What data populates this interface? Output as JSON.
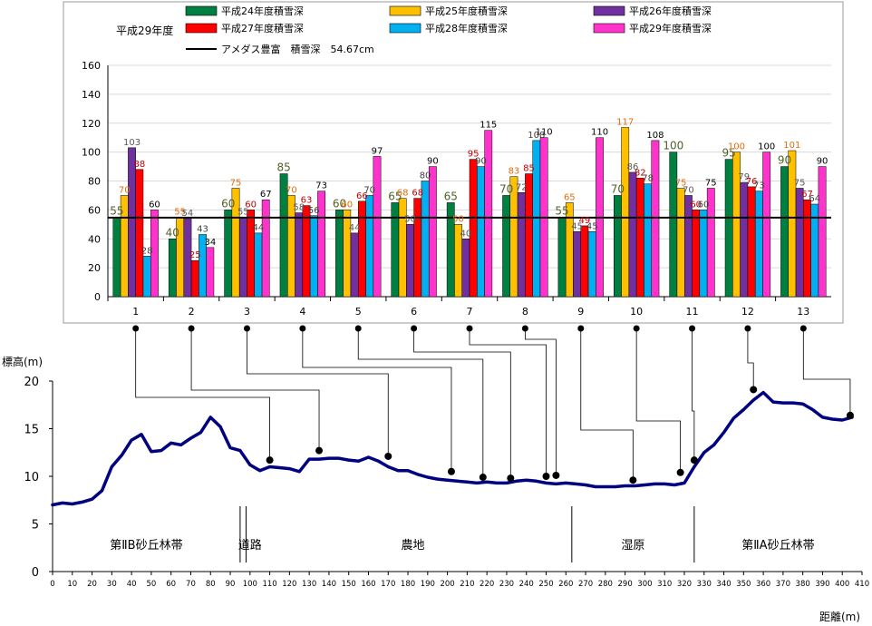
{
  "chart_data": [
    {
      "type": "bar",
      "title": "平成29年度",
      "categories": [
        "1",
        "2",
        "3",
        "4",
        "5",
        "6",
        "7",
        "8",
        "9",
        "10",
        "11",
        "12",
        "13"
      ],
      "ylim": [
        0,
        160
      ],
      "yticks": [
        "0",
        "20",
        "40",
        "60",
        "80",
        "100",
        "120",
        "140",
        "160"
      ],
      "grid": true,
      "legend_position": "top",
      "series": [
        {
          "name": "平成24年度積雪深",
          "color": "#008040",
          "label_color": "#4f6228",
          "values": [
            55,
            40,
            60,
            85,
            60,
            65,
            65,
            70,
            55,
            70,
            100,
            95,
            90
          ]
        },
        {
          "name": "平成25年度積雪深",
          "color": "#ffc000",
          "label_color": "#e46c0a",
          "values": [
            70,
            55,
            75,
            70,
            60,
            68,
            50,
            83,
            65,
            117,
            75,
            100,
            101
          ]
        },
        {
          "name": "平成26年度積雪深",
          "color": "#7030a0",
          "label_color": "#595959",
          "values": [
            103,
            54,
            55,
            58,
            44,
            50,
            40,
            72,
            45,
            86,
            70,
            79,
            75
          ]
        },
        {
          "name": "平成27年度積雪深",
          "color": "#ff0000",
          "label_color": "#c00000",
          "values": [
            88,
            25,
            60,
            63,
            66,
            68,
            95,
            85,
            49,
            82,
            60,
            76,
            67
          ]
        },
        {
          "name": "平成28年度積雪深",
          "color": "#00b0f0",
          "label_color": "#404040",
          "values": [
            28,
            43,
            44,
            56,
            70,
            80,
            90,
            108,
            45,
            78,
            60,
            73,
            64
          ]
        },
        {
          "name": "平成29年度積雪深",
          "color": "#ff33cc",
          "label_color": "#000000",
          "values": [
            60,
            34,
            67,
            73,
            97,
            90,
            115,
            110,
            110,
            108,
            75,
            100,
            90
          ]
        }
      ],
      "reference_line": {
        "name": "アメダス豊富　積雪深　54.67cm",
        "value": 54.67,
        "color": "#000000"
      }
    },
    {
      "type": "line",
      "ylabel": "標高(m)",
      "xlabel": "距離(m)",
      "xlim": [
        0,
        410
      ],
      "ylim": [
        0,
        20
      ],
      "xticks": [
        "0",
        "10",
        "20",
        "30",
        "40",
        "50",
        "60",
        "70",
        "80",
        "90",
        "100",
        "110",
        "120",
        "130",
        "140",
        "150",
        "160",
        "170",
        "180",
        "190",
        "200",
        "210",
        "220",
        "230",
        "240",
        "250",
        "260",
        "270",
        "280",
        "290",
        "300",
        "310",
        "320",
        "330",
        "340",
        "350",
        "360",
        "370",
        "380",
        "390",
        "400",
        "410"
      ],
      "yticks": [
        "0",
        "5",
        "10",
        "15",
        "20"
      ],
      "color": "#000080",
      "profile": {
        "x": [
          0,
          5,
          10,
          15,
          20,
          25,
          30,
          35,
          40,
          45,
          50,
          55,
          60,
          65,
          70,
          75,
          80,
          85,
          90,
          95,
          100,
          105,
          110,
          115,
          120,
          125,
          130,
          135,
          140,
          145,
          150,
          155,
          160,
          165,
          170,
          175,
          180,
          185,
          190,
          195,
          200,
          205,
          210,
          215,
          220,
          225,
          230,
          235,
          240,
          245,
          250,
          255,
          260,
          265,
          270,
          275,
          280,
          285,
          290,
          295,
          300,
          305,
          310,
          315,
          320,
          325,
          330,
          335,
          340,
          345,
          350,
          355,
          360,
          365,
          370,
          375,
          380,
          385,
          390,
          395,
          400,
          405
        ],
        "y": [
          7.0,
          7.2,
          7.1,
          7.3,
          7.6,
          8.5,
          11.0,
          12.2,
          13.8,
          14.4,
          12.6,
          12.7,
          13.5,
          13.3,
          14.0,
          14.6,
          16.2,
          15.2,
          13.0,
          12.7,
          11.2,
          10.6,
          11.0,
          10.9,
          10.8,
          10.5,
          11.8,
          11.8,
          11.9,
          11.9,
          11.7,
          11.6,
          12.0,
          11.6,
          11.0,
          10.6,
          10.6,
          10.2,
          9.9,
          9.7,
          9.6,
          9.5,
          9.4,
          9.3,
          9.4,
          9.3,
          9.3,
          9.5,
          9.6,
          9.5,
          9.3,
          9.2,
          9.3,
          9.2,
          9.1,
          8.9,
          8.9,
          8.9,
          9.0,
          9.0,
          9.1,
          9.2,
          9.2,
          9.1,
          9.3,
          11.0,
          12.5,
          13.3,
          14.6,
          16.1,
          17.0,
          18.0,
          18.8,
          17.8,
          17.7,
          17.7,
          17.6,
          17.0,
          16.2,
          16.0,
          15.9,
          16.2
        ]
      },
      "points": [
        {
          "label": "1",
          "x": 110,
          "y": 11.7
        },
        {
          "label": "2",
          "x": 135,
          "y": 12.7
        },
        {
          "label": "3",
          "x": 170,
          "y": 12.1
        },
        {
          "label": "4",
          "x": 202,
          "y": 10.5
        },
        {
          "label": "5",
          "x": 218,
          "y": 9.9
        },
        {
          "label": "6",
          "x": 232,
          "y": 9.8
        },
        {
          "label": "7",
          "x": 250,
          "y": 10.0
        },
        {
          "label": "8",
          "x": 255,
          "y": 10.1
        },
        {
          "label": "9",
          "x": 294,
          "y": 9.6
        },
        {
          "label": "10",
          "x": 318,
          "y": 10.4
        },
        {
          "label": "11",
          "x": 325,
          "y": 11.7
        },
        {
          "label": "12",
          "x": 355,
          "y": 19.1
        },
        {
          "label": "13",
          "x": 404,
          "y": 16.4
        }
      ],
      "zones": [
        {
          "label": "第ⅡB砂丘林帯",
          "from": 0,
          "to": 95
        },
        {
          "label": "道路",
          "from": 98,
          "to": 102
        },
        {
          "label": "農地",
          "from": 102,
          "to": 263
        },
        {
          "label": "湿原",
          "from": 263,
          "to": 325
        },
        {
          "label": "第ⅡA砂丘林帯",
          "from": 325,
          "to": 410
        }
      ],
      "zone_boundaries": [
        95,
        98,
        263,
        325
      ]
    }
  ]
}
